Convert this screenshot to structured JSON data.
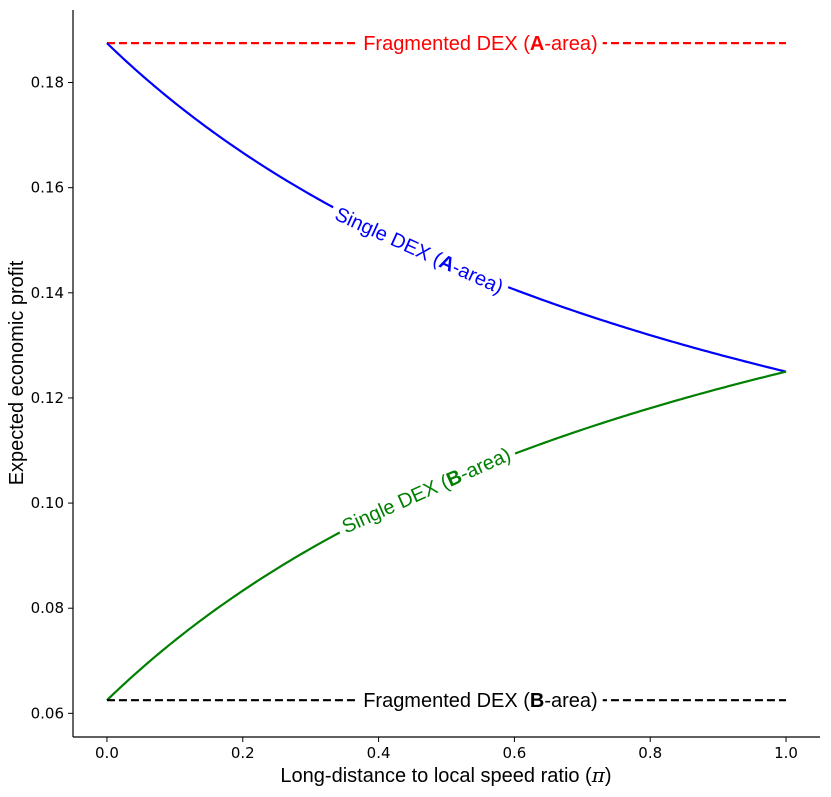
{
  "chart_data": {
    "type": "line",
    "title": "",
    "xlabel": "Long-distance to local speed ratio (",
    "xlabel_symbol": "π",
    "xlabel_suffix": ")",
    "ylabel": "Expected economic profit",
    "xlim": [
      -0.05,
      1.05
    ],
    "ylim": [
      0.0555,
      0.1938
    ],
    "xticks": [
      0.0,
      0.2,
      0.4,
      0.6,
      0.8,
      1.0
    ],
    "xtick_labels": [
      "0.0",
      "0.2",
      "0.4",
      "0.6",
      "0.8",
      "1.0"
    ],
    "yticks": [
      0.06,
      0.08,
      0.1,
      0.12,
      0.14,
      0.16,
      0.18
    ],
    "ytick_labels": [
      "0.06",
      "0.08",
      "0.10",
      "0.12",
      "0.14",
      "0.16",
      "0.18"
    ],
    "series": [
      {
        "name": "Fragmented DEX (A-area)",
        "label_parts": [
          "Fragmented DEX (",
          "A",
          "-area)"
        ],
        "color": "#ff0000",
        "style": "dashed",
        "x": [
          0.0,
          1.0
        ],
        "y": [
          0.1875,
          0.1875
        ],
        "label_at_x": 0.55
      },
      {
        "name": "Single DEX (A-area)",
        "label_parts": [
          "Single DEX (",
          "A",
          "-area)"
        ],
        "color": "#0000ff",
        "style": "solid",
        "x": [
          0.0,
          0.1,
          0.2,
          0.3,
          0.4,
          0.5,
          0.6,
          0.7,
          0.8,
          0.9,
          1.0
        ],
        "y": [
          0.1875,
          0.1763,
          0.1667,
          0.1583,
          0.151,
          0.1444,
          0.1386,
          0.1333,
          0.1285,
          0.1241,
          0.125
        ],
        "label_at_x": 0.46
      },
      {
        "name": "Single DEX (B-area)",
        "label_parts": [
          "Single DEX (",
          "B",
          "-area)"
        ],
        "color": "#008000",
        "style": "solid",
        "x": [
          0.0,
          0.1,
          0.2,
          0.3,
          0.4,
          0.5,
          0.6,
          0.7,
          0.8,
          0.9,
          1.0
        ],
        "y": [
          0.0625,
          0.0737,
          0.0833,
          0.0917,
          0.099,
          0.1056,
          0.1114,
          0.1167,
          0.1215,
          0.1259,
          0.125
        ],
        "label_at_x": 0.47
      },
      {
        "name": "Fragmented DEX (B-area)",
        "label_parts": [
          "Fragmented DEX (",
          "B",
          "-area)"
        ],
        "color": "#000000",
        "style": "dashed",
        "x": [
          0.0,
          1.0
        ],
        "y": [
          0.0625,
          0.0625
        ],
        "label_at_x": 0.55
      }
    ]
  }
}
